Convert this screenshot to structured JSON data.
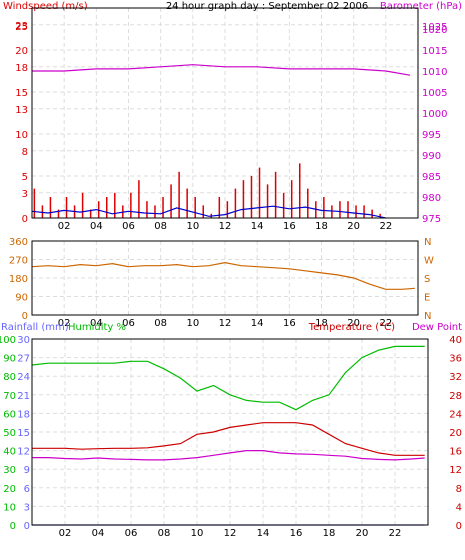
{
  "title": "24 hour graph day : September 02 2006",
  "colors": {
    "wind": "#dd0000",
    "wind_avg": "#0000cc",
    "baro": "#cc00cc",
    "dir": "#cc6600",
    "rain": "#6666ff",
    "humidity": "#00bb00",
    "temp": "#cc0000",
    "dew": "#cc00cc",
    "grid": "#dddddd",
    "frame": "#000000"
  },
  "chart_data": [
    {
      "type": "bar",
      "name": "wind-baro",
      "left_label": "Windspeed (m/s)",
      "right_label": "Barometer (hPa)",
      "x_ticks": [
        "02",
        "04",
        "06",
        "08",
        "10",
        "12",
        "14",
        "16",
        "18",
        "20",
        "22"
      ],
      "xlim": [
        0,
        24
      ],
      "ylim_left": [
        0,
        25
      ],
      "ylim_right": [
        975,
        1025
      ],
      "y_left_ticks": [
        0,
        3,
        5,
        8,
        10,
        13,
        15,
        18,
        20,
        23,
        25
      ],
      "y_right_ticks": [
        975,
        980,
        985,
        990,
        995,
        1000,
        1005,
        1010,
        1015,
        1020,
        1025
      ],
      "series": [
        {
          "name": "Windspeed gust",
          "axis": "left",
          "style": "bars",
          "x": [
            0.1,
            0.6,
            1.1,
            1.6,
            2.1,
            2.6,
            3.1,
            3.6,
            4.1,
            4.6,
            5.1,
            5.6,
            6.1,
            6.6,
            7.1,
            7.6,
            8.1,
            8.6,
            9.1,
            9.6,
            10.1,
            10.6,
            11.1,
            11.6,
            12.1,
            12.6,
            13.1,
            13.6,
            14.1,
            14.6,
            15.1,
            15.6,
            16.1,
            16.6,
            17.1,
            17.6,
            18.1,
            18.6,
            19.1,
            19.6,
            20.1,
            20.6,
            21.1,
            21.6
          ],
          "values": [
            3.5,
            1.5,
            2.5,
            1.0,
            2.5,
            1.5,
            3.0,
            1.0,
            2.0,
            2.5,
            3.0,
            1.5,
            3.0,
            4.5,
            2.0,
            1.5,
            2.5,
            4.0,
            5.5,
            3.5,
            2.5,
            1.5,
            0.5,
            2.5,
            2.0,
            3.5,
            4.5,
            5.0,
            6.0,
            4.0,
            5.5,
            3.0,
            4.5,
            6.5,
            3.5,
            2.0,
            2.5,
            1.5,
            2.0,
            2.0,
            1.5,
            1.5,
            1.0,
            0.5
          ]
        },
        {
          "name": "Windspeed average",
          "axis": "left",
          "style": "line",
          "x": [
            0,
            1,
            2,
            3,
            4,
            5,
            6,
            7,
            8,
            9,
            10,
            11,
            12,
            13,
            14,
            15,
            16,
            17,
            18,
            19,
            20,
            21,
            22
          ],
          "values": [
            0.8,
            0.6,
            0.9,
            0.7,
            1.0,
            0.5,
            0.8,
            0.6,
            0.5,
            1.2,
            0.7,
            0.2,
            0.4,
            1.0,
            1.2,
            1.4,
            1.1,
            1.3,
            0.9,
            0.8,
            0.6,
            0.4,
            0.0
          ]
        },
        {
          "name": "Barometer",
          "axis": "right",
          "style": "line",
          "x": [
            0,
            2,
            4,
            6,
            8,
            10,
            12,
            14,
            16,
            18,
            20,
            22,
            23.5
          ],
          "values": [
            1010,
            1010,
            1010.5,
            1010.5,
            1011,
            1011.5,
            1011,
            1011,
            1010.5,
            1010.5,
            1010.5,
            1010,
            1009
          ]
        }
      ]
    },
    {
      "type": "line",
      "name": "wind-direction",
      "x_ticks": [
        "02",
        "04",
        "06",
        "08",
        "10",
        "12",
        "14",
        "16",
        "18",
        "20",
        "22"
      ],
      "xlim": [
        0,
        24
      ],
      "ylim": [
        0,
        360
      ],
      "y_left_ticks": [
        0,
        90,
        180,
        270,
        360
      ],
      "y_right_labels": [
        "N",
        "E",
        "S",
        "W",
        "N"
      ],
      "series": [
        {
          "name": "Wind direction",
          "x": [
            0,
            1,
            2,
            3,
            4,
            5,
            6,
            7,
            8,
            9,
            10,
            11,
            12,
            13,
            14,
            15,
            16,
            17,
            18,
            19,
            20,
            21,
            22,
            23,
            23.8
          ],
          "values": [
            235,
            240,
            235,
            245,
            240,
            250,
            235,
            240,
            240,
            245,
            235,
            240,
            255,
            240,
            235,
            230,
            225,
            215,
            205,
            195,
            180,
            150,
            125,
            125,
            130
          ]
        }
      ]
    },
    {
      "type": "line",
      "name": "rain-humidity-temp",
      "left_label_rain": "Rainfall (mm)",
      "left_label_humidity": "Humidity %",
      "right_label": "Temperature (°C)",
      "right_label_dew": "Dew Point",
      "x_ticks": [
        "02",
        "04",
        "06",
        "08",
        "10",
        "12",
        "14",
        "16",
        "18",
        "20",
        "22"
      ],
      "xlim": [
        0,
        24
      ],
      "ylim_humidity": [
        0,
        100
      ],
      "ylim_rain": [
        0,
        30
      ],
      "ylim_temp": [
        0,
        40
      ],
      "y_humidity_ticks": [
        0,
        10,
        20,
        30,
        40,
        50,
        60,
        70,
        80,
        90,
        100
      ],
      "y_rain_ticks": [
        0,
        3,
        6,
        9,
        12,
        15,
        18,
        21,
        24,
        27,
        30
      ],
      "y_temp_ticks": [
        0,
        4,
        8,
        12,
        16,
        20,
        24,
        28,
        32,
        36,
        40
      ],
      "series": [
        {
          "name": "Humidity",
          "axis": "humidity",
          "x": [
            0,
            1,
            2,
            3,
            4,
            5,
            6,
            7,
            8,
            9,
            10,
            11,
            12,
            13,
            14,
            15,
            16,
            17,
            18,
            19,
            20,
            21,
            22,
            23,
            23.8
          ],
          "values": [
            86,
            87,
            87,
            87,
            87,
            87,
            88,
            88,
            84,
            79,
            72,
            75,
            70,
            67,
            66,
            66,
            62,
            67,
            70,
            82,
            90,
            94,
            96,
            96,
            96
          ]
        },
        {
          "name": "Temperature",
          "axis": "temp",
          "x": [
            0,
            1,
            2,
            3,
            4,
            5,
            6,
            7,
            8,
            9,
            10,
            11,
            12,
            13,
            14,
            15,
            16,
            17,
            18,
            19,
            20,
            21,
            22,
            23,
            23.8
          ],
          "values": [
            16.5,
            16.5,
            16.5,
            16.3,
            16.4,
            16.5,
            16.5,
            16.6,
            17,
            17.5,
            19.5,
            20,
            21,
            21.5,
            22,
            22,
            22,
            21.5,
            19.5,
            17.5,
            16.5,
            15.5,
            15,
            15,
            15
          ]
        },
        {
          "name": "Dew Point",
          "axis": "temp",
          "x": [
            0,
            1,
            2,
            3,
            4,
            5,
            6,
            7,
            8,
            9,
            10,
            11,
            12,
            13,
            14,
            15,
            16,
            17,
            18,
            19,
            20,
            21,
            22,
            23,
            23.8
          ],
          "values": [
            14.5,
            14.5,
            14.3,
            14.2,
            14.4,
            14.2,
            14.1,
            14.0,
            14.0,
            14.2,
            14.5,
            15.0,
            15.5,
            16.0,
            16.0,
            15.5,
            15.3,
            15.2,
            15.0,
            14.8,
            14.3,
            14.1,
            14.0,
            14.2,
            14.4
          ]
        },
        {
          "name": "Rainfall",
          "axis": "rain",
          "x": [
            0,
            23.8
          ],
          "values": [
            0,
            0
          ]
        }
      ]
    }
  ]
}
